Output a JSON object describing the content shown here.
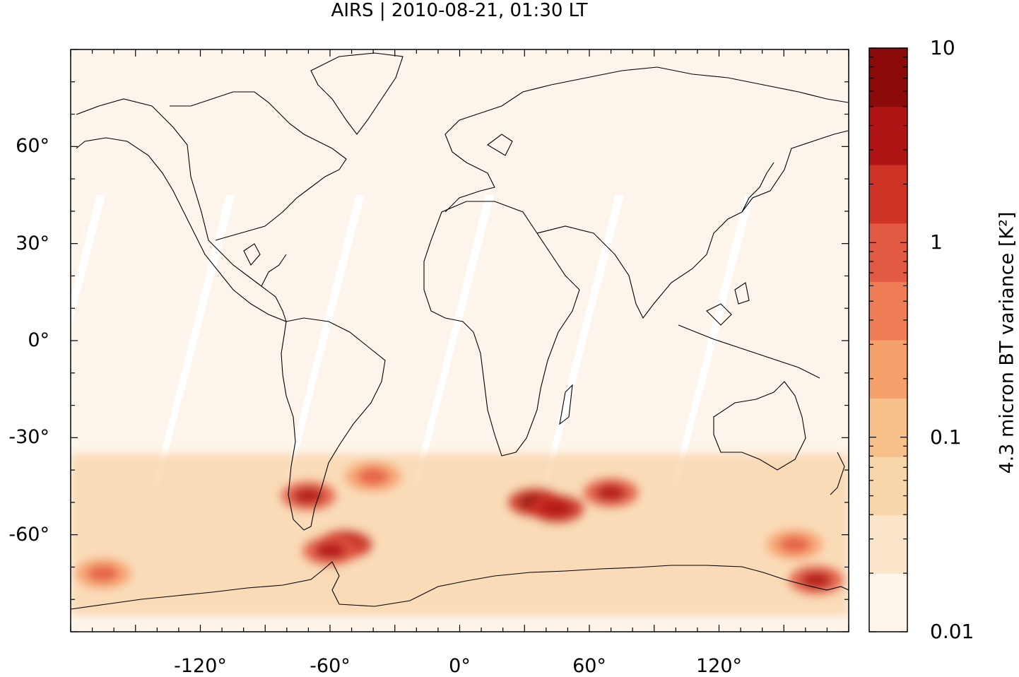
{
  "title": "AIRS | 2010-08-21, 01:30 LT",
  "map": {
    "projection": "equirectangular",
    "lon_range": [
      -180,
      180
    ],
    "lat_range": [
      -90,
      90
    ],
    "background_color": "#fdf5eb",
    "swath_gap_color": "#ffffff"
  },
  "axes": {
    "lat_ticks": [
      {
        "value": 60,
        "label": "60°"
      },
      {
        "value": 30,
        "label": "30°"
      },
      {
        "value": 0,
        "label": "0°"
      },
      {
        "value": -30,
        "label": "-30°"
      },
      {
        "value": -60,
        "label": "-60°"
      }
    ],
    "lon_ticks": [
      {
        "value": -120,
        "label": "-120°"
      },
      {
        "value": -60,
        "label": "-60°"
      },
      {
        "value": 0,
        "label": "0°"
      },
      {
        "value": 60,
        "label": "60°"
      },
      {
        "value": 120,
        "label": "120°"
      }
    ]
  },
  "colorbar": {
    "title": "4.3 micron BT variance [K²]",
    "scale": "log",
    "min": 0.01,
    "max": 10,
    "tick_labels": [
      "10",
      "1",
      "0.1",
      "0.01"
    ],
    "tick_values": [
      10,
      1,
      0.1,
      0.01
    ],
    "colors": [
      "#fdf5eb",
      "#fbe6cc",
      "#f9d5aa",
      "#f8c08a",
      "#f6a06c",
      "#ee7d56",
      "#e35a44",
      "#cf3325",
      "#b01515",
      "#8c0a0a"
    ]
  },
  "chart_data": {
    "type": "heatmap",
    "title": "AIRS | 2010-08-21, 01:30 LT",
    "variable": "4.3 micron BT variance [K²]",
    "scale": "log",
    "range": [
      0.01,
      10
    ],
    "hotspots": [
      {
        "lon": -70,
        "lat": -48,
        "value": 3
      },
      {
        "lon": -53,
        "lat": -63,
        "value": 5
      },
      {
        "lon": -60,
        "lat": -65,
        "value": 3
      },
      {
        "lon": 35,
        "lat": -50,
        "value": 6
      },
      {
        "lon": 45,
        "lat": -52,
        "value": 5
      },
      {
        "lon": 70,
        "lat": -47,
        "value": 4
      },
      {
        "lon": -40,
        "lat": -42,
        "value": 1
      },
      {
        "lon": -165,
        "lat": -72,
        "value": 1
      },
      {
        "lon": 165,
        "lat": -74,
        "value": 4
      },
      {
        "lon": 155,
        "lat": -63,
        "value": 1
      }
    ]
  }
}
